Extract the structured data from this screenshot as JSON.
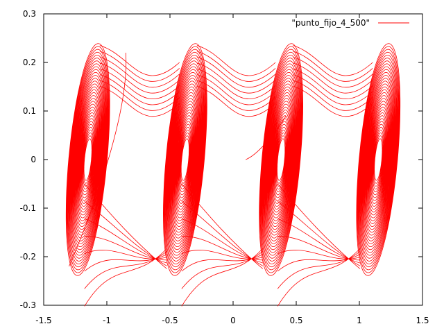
{
  "chart_data": {
    "type": "line",
    "title": "",
    "xlabel": "",
    "ylabel": "",
    "xlim": [
      -1.5,
      1.5
    ],
    "ylim": [
      -0.3,
      0.3
    ],
    "xticks": [
      -1.5,
      -1,
      -0.5,
      0,
      0.5,
      1,
      1.5
    ],
    "xtick_labels": [
      "-1.5",
      "-1",
      "-0.5",
      "0",
      "0.5",
      "1",
      "1.5"
    ],
    "yticks": [
      -0.3,
      -0.2,
      -0.1,
      0,
      0.1,
      0.2,
      0.3
    ],
    "ytick_labels": [
      "-0.3",
      "-0.2",
      "-0.1",
      "0",
      "0.1",
      "0.2",
      "0.3"
    ],
    "grid": false,
    "legend_position": "top-right",
    "series": [
      {
        "name": "\"punto_fijo_4_500\"",
        "color": "#ff0000",
        "attractor_centers_x": [
          -1.15,
          -0.38,
          0.38,
          1.15
        ],
        "attractor_half_width_x": 0.27,
        "attractor_half_height_y": 0.24
      }
    ]
  }
}
